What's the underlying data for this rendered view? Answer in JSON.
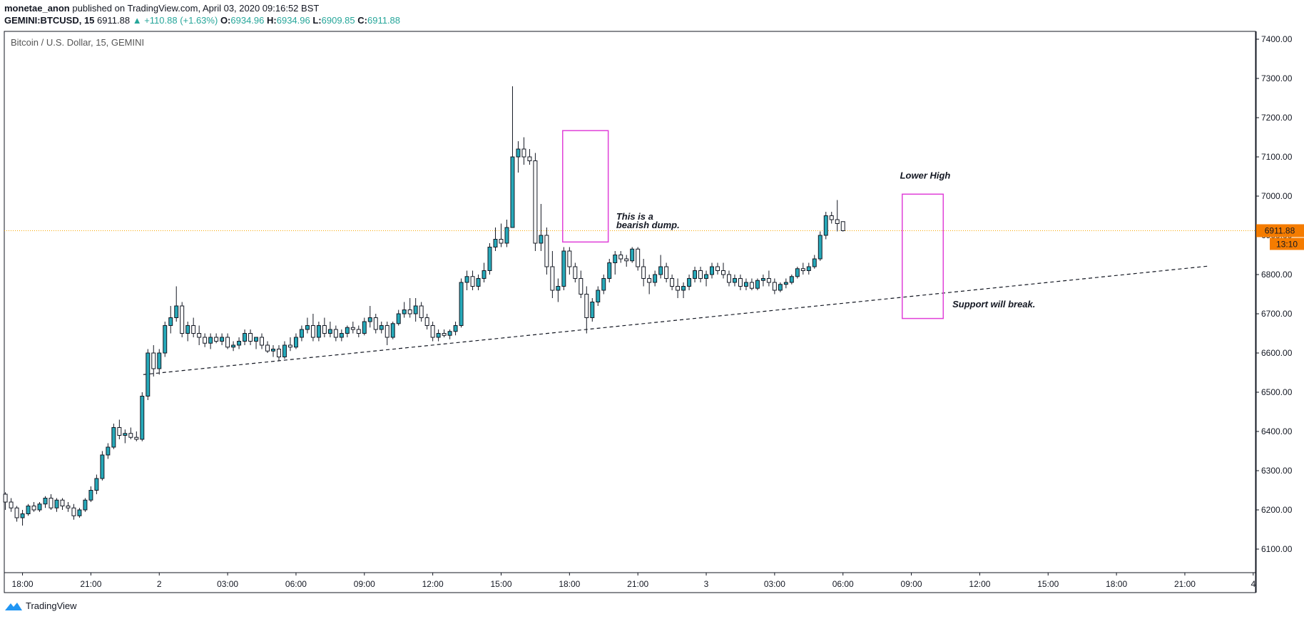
{
  "header": {
    "author": "monetae_anon",
    "published_text": "published on TradingView.com, April 03, 2020 09:16:52 BST"
  },
  "symbol_line": {
    "symbol": "GEMINI:BTCUSD, 15",
    "last": "6911.88",
    "arrow": "▲",
    "change": "+110.88 (+1.63%)",
    "open_label": "O:",
    "open": "6934.96",
    "high_label": "H:",
    "high": "6934.96",
    "low_label": "L:",
    "low": "6909.85",
    "close_label": "C:",
    "close": "6911.88"
  },
  "footer": {
    "brand": "TradingView"
  },
  "colors": {
    "bull": "#26a9b9",
    "bear": "#ffffff",
    "outline": "#131722",
    "box": "#e040d8",
    "price_line": "#f7a600",
    "price_tag": "#f57c00"
  },
  "chart_data": {
    "type": "candlestick",
    "title": "Bitcoin / U.S. Dollar, 15, GEMINI",
    "ylim": [
      6040,
      7420
    ],
    "y_ticks": [
      6100,
      6200,
      6300,
      6400,
      6500,
      6600,
      6700,
      6800,
      6900,
      7000,
      7100,
      7200,
      7300,
      7400
    ],
    "y_tick_labels": [
      "6100.00",
      "6200.00",
      "6300.00",
      "6400.00",
      "6500.00",
      "6600.00",
      "6700.00",
      "6800.00",
      "6900.00",
      "7000.00",
      "7100.00",
      "7200.00",
      "7300.00",
      "7400.00"
    ],
    "x_ticks": [
      "18:00",
      "21:00",
      "2",
      "03:00",
      "06:00",
      "09:00",
      "12:00",
      "15:00",
      "18:00",
      "21:00",
      "3",
      "03:00",
      "06:00",
      "09:00",
      "12:00",
      "15:00",
      "18:00",
      "21:00",
      "4"
    ],
    "x_tick_hours": [
      18,
      21,
      24,
      27,
      30,
      33,
      36,
      39,
      42,
      45,
      48,
      51,
      54,
      57,
      60,
      63,
      66,
      69,
      72
    ],
    "x_range_hours": [
      17.2,
      72.1
    ],
    "candle_start_hour": 17.25,
    "candle_interval_hours": 0.25,
    "candles": [
      [
        6240,
        6245,
        6200,
        6220
      ],
      [
        6220,
        6230,
        6195,
        6205
      ],
      [
        6205,
        6210,
        6170,
        6180
      ],
      [
        6180,
        6200,
        6160,
        6190
      ],
      [
        6190,
        6215,
        6185,
        6210
      ],
      [
        6210,
        6220,
        6195,
        6200
      ],
      [
        6200,
        6220,
        6195,
        6215
      ],
      [
        6215,
        6235,
        6205,
        6230
      ],
      [
        6230,
        6240,
        6200,
        6205
      ],
      [
        6205,
        6230,
        6195,
        6225
      ],
      [
        6225,
        6230,
        6200,
        6210
      ],
      [
        6210,
        6220,
        6195,
        6205
      ],
      [
        6205,
        6215,
        6175,
        6185
      ],
      [
        6185,
        6205,
        6180,
        6200
      ],
      [
        6200,
        6230,
        6195,
        6225
      ],
      [
        6225,
        6260,
        6220,
        6250
      ],
      [
        6250,
        6290,
        6240,
        6280
      ],
      [
        6280,
        6350,
        6275,
        6340
      ],
      [
        6340,
        6370,
        6330,
        6360
      ],
      [
        6360,
        6420,
        6355,
        6410
      ],
      [
        6410,
        6430,
        6380,
        6390
      ],
      [
        6390,
        6405,
        6370,
        6395
      ],
      [
        6395,
        6410,
        6380,
        6385
      ],
      [
        6385,
        6400,
        6375,
        6380
      ],
      [
        6380,
        6500,
        6375,
        6490
      ],
      [
        6490,
        6610,
        6480,
        6600
      ],
      [
        6600,
        6620,
        6540,
        6560
      ],
      [
        6560,
        6610,
        6545,
        6600
      ],
      [
        6600,
        6680,
        6590,
        6670
      ],
      [
        6670,
        6720,
        6650,
        6690
      ],
      [
        6690,
        6770,
        6680,
        6720
      ],
      [
        6720,
        6730,
        6640,
        6650
      ],
      [
        6650,
        6680,
        6630,
        6670
      ],
      [
        6670,
        6690,
        6640,
        6650
      ],
      [
        6650,
        6670,
        6620,
        6640
      ],
      [
        6640,
        6650,
        6615,
        6625
      ],
      [
        6625,
        6650,
        6610,
        6640
      ],
      [
        6640,
        6650,
        6625,
        6630
      ],
      [
        6630,
        6650,
        6620,
        6640
      ],
      [
        6640,
        6650,
        6610,
        6615
      ],
      [
        6615,
        6630,
        6605,
        6620
      ],
      [
        6620,
        6640,
        6610,
        6630
      ],
      [
        6630,
        6660,
        6620,
        6650
      ],
      [
        6650,
        6660,
        6620,
        6630
      ],
      [
        6630,
        6640,
        6610,
        6640
      ],
      [
        6640,
        6650,
        6610,
        6620
      ],
      [
        6620,
        6630,
        6600,
        6605
      ],
      [
        6605,
        6620,
        6590,
        6610
      ],
      [
        6610,
        6620,
        6580,
        6590
      ],
      [
        6590,
        6630,
        6585,
        6620
      ],
      [
        6620,
        6640,
        6605,
        6615
      ],
      [
        6615,
        6650,
        6610,
        6640
      ],
      [
        6640,
        6670,
        6630,
        6660
      ],
      [
        6660,
        6690,
        6650,
        6670
      ],
      [
        6670,
        6700,
        6630,
        6640
      ],
      [
        6640,
        6680,
        6630,
        6670
      ],
      [
        6670,
        6690,
        6640,
        6650
      ],
      [
        6650,
        6680,
        6640,
        6660
      ],
      [
        6660,
        6670,
        6630,
        6640
      ],
      [
        6640,
        6660,
        6630,
        6650
      ],
      [
        6650,
        6670,
        6640,
        6665
      ],
      [
        6665,
        6680,
        6650,
        6660
      ],
      [
        6660,
        6670,
        6640,
        6650
      ],
      [
        6650,
        6690,
        6645,
        6680
      ],
      [
        6680,
        6720,
        6665,
        6690
      ],
      [
        6690,
        6700,
        6650,
        6660
      ],
      [
        6660,
        6680,
        6650,
        6670
      ],
      [
        6670,
        6680,
        6620,
        6640
      ],
      [
        6640,
        6680,
        6635,
        6675
      ],
      [
        6675,
        6710,
        6670,
        6700
      ],
      [
        6700,
        6730,
        6690,
        6710
      ],
      [
        6710,
        6740,
        6690,
        6700
      ],
      [
        6700,
        6740,
        6680,
        6720
      ],
      [
        6720,
        6730,
        6680,
        6690
      ],
      [
        6690,
        6700,
        6660,
        6670
      ],
      [
        6670,
        6680,
        6630,
        6640
      ],
      [
        6640,
        6660,
        6630,
        6650
      ],
      [
        6650,
        6660,
        6640,
        6645
      ],
      [
        6645,
        6660,
        6635,
        6655
      ],
      [
        6655,
        6680,
        6645,
        6670
      ],
      [
        6670,
        6790,
        6665,
        6780
      ],
      [
        6780,
        6810,
        6760,
        6795
      ],
      [
        6795,
        6810,
        6760,
        6770
      ],
      [
        6770,
        6800,
        6760,
        6790
      ],
      [
        6790,
        6830,
        6780,
        6810
      ],
      [
        6810,
        6880,
        6800,
        6870
      ],
      [
        6870,
        6920,
        6860,
        6890
      ],
      [
        6890,
        6930,
        6870,
        6880
      ],
      [
        6880,
        6940,
        6870,
        6920
      ],
      [
        6920,
        7280,
        6920,
        7100
      ],
      [
        7100,
        7140,
        7060,
        7120
      ],
      [
        7120,
        7150,
        7080,
        7100
      ],
      [
        7100,
        7120,
        7080,
        7090
      ],
      [
        7090,
        7110,
        6860,
        6880
      ],
      [
        6880,
        6980,
        6860,
        6900
      ],
      [
        6900,
        6920,
        6800,
        6820
      ],
      [
        6820,
        6860,
        6740,
        6760
      ],
      [
        6760,
        6790,
        6730,
        6770
      ],
      [
        6770,
        6870,
        6760,
        6860
      ],
      [
        6860,
        6870,
        6800,
        6820
      ],
      [
        6820,
        6830,
        6780,
        6790
      ],
      [
        6790,
        6810,
        6740,
        6750
      ],
      [
        6750,
        6770,
        6650,
        6690
      ],
      [
        6690,
        6740,
        6680,
        6730
      ],
      [
        6730,
        6770,
        6720,
        6760
      ],
      [
        6760,
        6800,
        6750,
        6790
      ],
      [
        6790,
        6840,
        6780,
        6830
      ],
      [
        6830,
        6860,
        6800,
        6850
      ],
      [
        6850,
        6860,
        6830,
        6840
      ],
      [
        6840,
        6850,
        6820,
        6835
      ],
      [
        6835,
        6870,
        6830,
        6865
      ],
      [
        6865,
        6870,
        6810,
        6820
      ],
      [
        6820,
        6840,
        6770,
        6790
      ],
      [
        6790,
        6800,
        6750,
        6780
      ],
      [
        6780,
        6810,
        6770,
        6800
      ],
      [
        6800,
        6850,
        6790,
        6820
      ],
      [
        6820,
        6830,
        6780,
        6790
      ],
      [
        6790,
        6800,
        6760,
        6770
      ],
      [
        6770,
        6790,
        6740,
        6760
      ],
      [
        6760,
        6780,
        6740,
        6770
      ],
      [
        6770,
        6800,
        6760,
        6790
      ],
      [
        6790,
        6820,
        6780,
        6810
      ],
      [
        6810,
        6820,
        6780,
        6790
      ],
      [
        6790,
        6810,
        6770,
        6800
      ],
      [
        6800,
        6830,
        6790,
        6820
      ],
      [
        6820,
        6830,
        6800,
        6810
      ],
      [
        6810,
        6830,
        6790,
        6800
      ],
      [
        6800,
        6810,
        6770,
        6780
      ],
      [
        6780,
        6800,
        6770,
        6790
      ],
      [
        6790,
        6800,
        6760,
        6770
      ],
      [
        6770,
        6790,
        6760,
        6780
      ],
      [
        6780,
        6790,
        6760,
        6765
      ],
      [
        6765,
        6790,
        6760,
        6785
      ],
      [
        6785,
        6800,
        6770,
        6790
      ],
      [
        6790,
        6810,
        6770,
        6780
      ],
      [
        6780,
        6790,
        6750,
        6760
      ],
      [
        6760,
        6780,
        6755,
        6775
      ],
      [
        6775,
        6790,
        6765,
        6780
      ],
      [
        6780,
        6800,
        6775,
        6795
      ],
      [
        6795,
        6820,
        6790,
        6815
      ],
      [
        6815,
        6830,
        6800,
        6810
      ],
      [
        6810,
        6830,
        6800,
        6820
      ],
      [
        6820,
        6850,
        6815,
        6840
      ],
      [
        6840,
        6910,
        6835,
        6900
      ],
      [
        6900,
        6960,
        6890,
        6950
      ],
      [
        6950,
        6960,
        6930,
        6940
      ],
      [
        6940,
        6990,
        6910,
        6930
      ],
      [
        6934.96,
        6934.96,
        6909.85,
        6911.88
      ]
    ],
    "support_line": {
      "start": [
        23.3,
        6545
      ],
      "end": [
        70.1,
        6822
      ]
    },
    "boxes": [
      {
        "x": [
          41.7,
          43.7
        ],
        "y": [
          6883,
          7167
        ]
      },
      {
        "x": [
          56.6,
          58.4
        ],
        "y": [
          6688,
          7005
        ]
      }
    ],
    "annotations": [
      {
        "lines": [
          "This is a",
          "bearish dump."
        ],
        "x": 44.05,
        "y": 6940
      },
      {
        "lines": [
          "Lower High"
        ],
        "x": 56.5,
        "y": 7045
      },
      {
        "lines": [
          "Support will break."
        ],
        "x": 58.8,
        "y": 6716
      }
    ],
    "last_price": 6911.88,
    "last_price_label": "6911.88",
    "countdown_label": "13:10"
  }
}
